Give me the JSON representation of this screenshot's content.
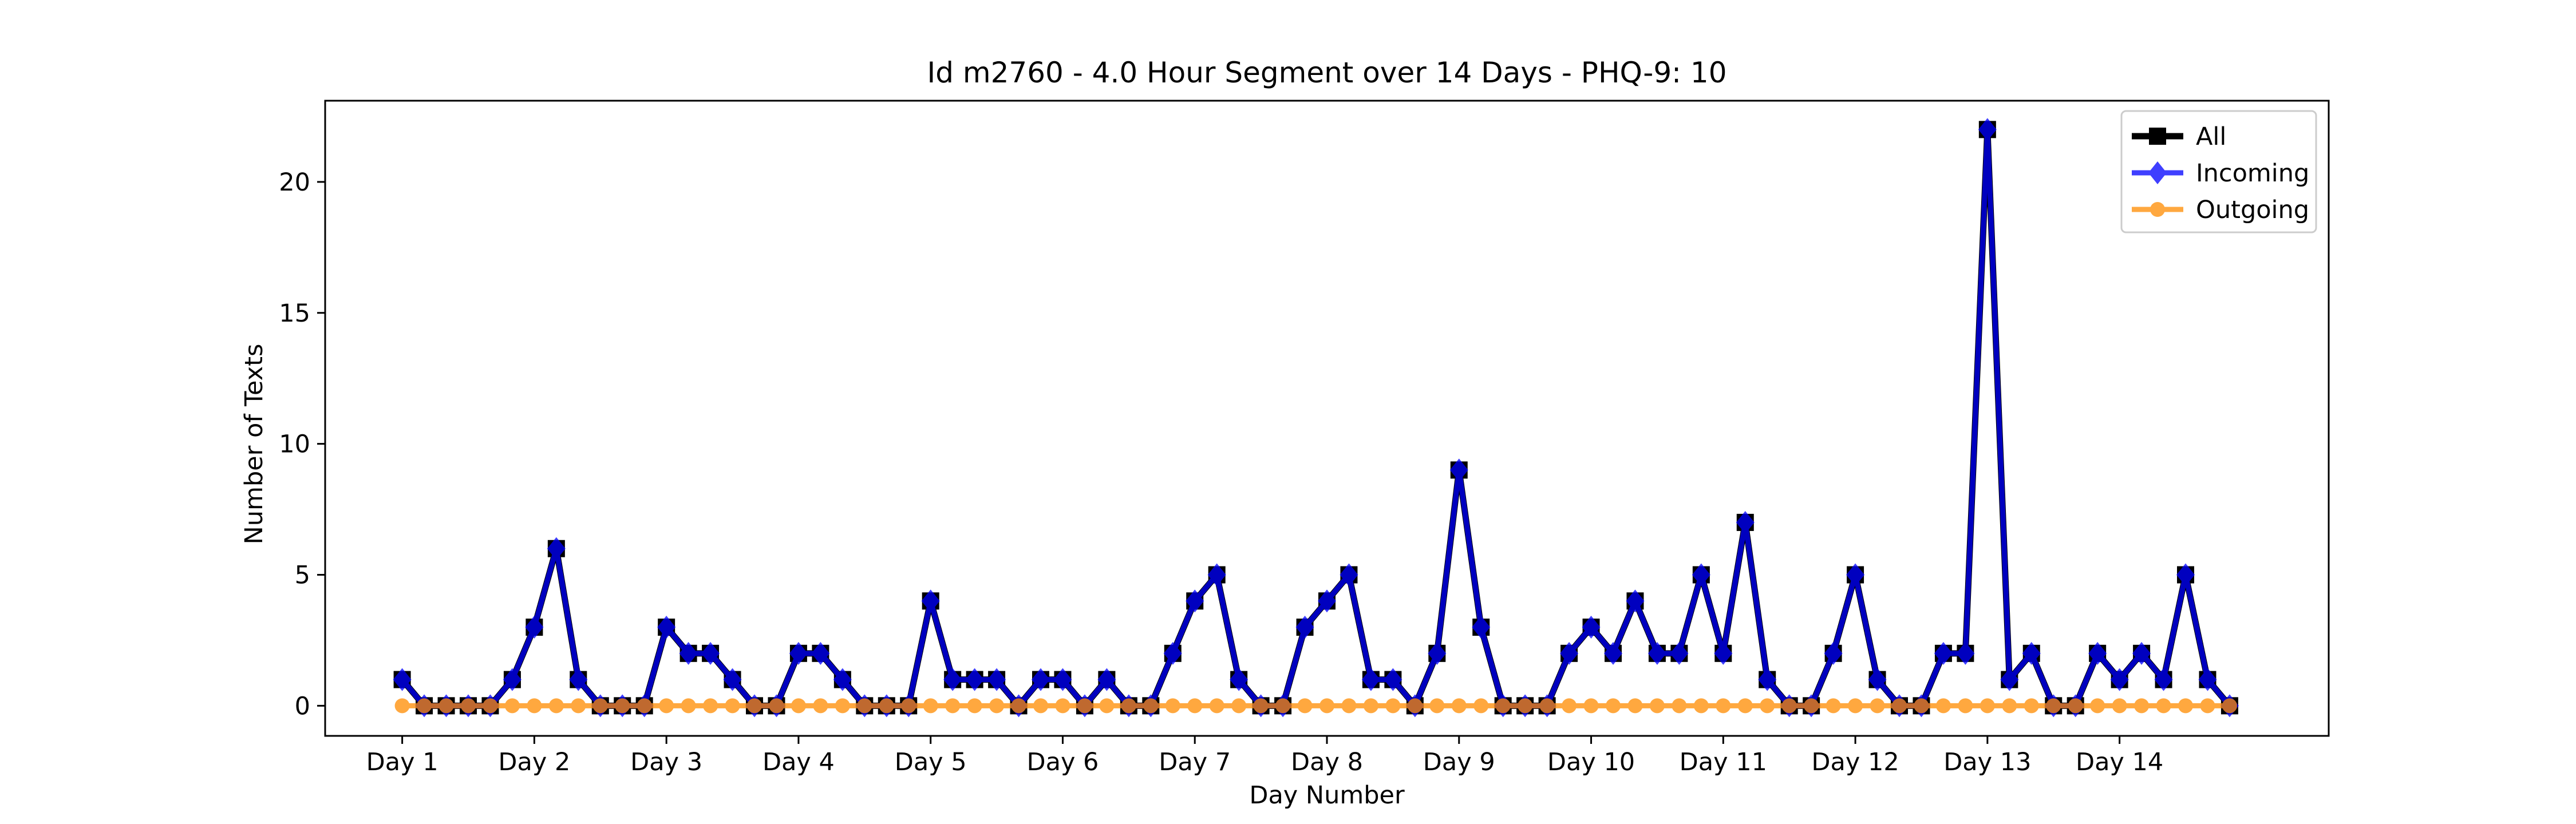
{
  "chart_data": {
    "type": "line",
    "title": "Id m2760 - 4.0 Hour Segment over 14 Days - PHQ-9: 10",
    "xlabel": "Day Number",
    "ylabel": "Number of Texts",
    "ylim": [
      -1.15,
      23.1
    ],
    "xlim": [
      -3.5,
      87.5
    ],
    "yticks": [
      0,
      5,
      10,
      15,
      20
    ],
    "xtick_positions": [
      0,
      6,
      12,
      18,
      24,
      30,
      36,
      42,
      48,
      54,
      60,
      66,
      72,
      78
    ],
    "xtick_labels": [
      "Day 1",
      "Day 2",
      "Day 3",
      "Day 4",
      "Day 5",
      "Day 6",
      "Day 7",
      "Day 8",
      "Day 9",
      "Day 10",
      "Day 11",
      "Day 12",
      "Day 13",
      "Day 14"
    ],
    "grid": false,
    "legend_position": "top-right",
    "series": [
      {
        "name": "All",
        "color": "#000000",
        "marker": "square",
        "values": [
          1,
          0,
          0,
          0,
          0,
          1,
          3,
          6,
          1,
          0,
          0,
          0,
          3,
          2,
          2,
          1,
          0,
          0,
          2,
          2,
          1,
          0,
          0,
          0,
          4,
          1,
          1,
          1,
          0,
          1,
          1,
          0,
          1,
          0,
          0,
          2,
          4,
          5,
          1,
          0,
          0,
          3,
          4,
          5,
          1,
          1,
          0,
          2,
          9,
          3,
          0,
          0,
          0,
          2,
          3,
          2,
          4,
          2,
          2,
          5,
          2,
          7,
          1,
          0,
          0,
          2,
          5,
          1,
          0,
          0,
          2,
          2,
          22,
          1,
          2,
          0,
          0,
          2,
          1,
          2,
          1,
          5,
          1,
          0
        ]
      },
      {
        "name": "Incoming",
        "color": "#0000ff",
        "marker": "diamond",
        "values": [
          1,
          0,
          0,
          0,
          0,
          1,
          3,
          6,
          1,
          0,
          0,
          0,
          3,
          2,
          2,
          1,
          0,
          0,
          2,
          2,
          1,
          0,
          0,
          0,
          4,
          1,
          1,
          1,
          0,
          1,
          1,
          0,
          1,
          0,
          0,
          2,
          4,
          5,
          1,
          0,
          0,
          3,
          4,
          5,
          1,
          1,
          0,
          2,
          9,
          3,
          0,
          0,
          0,
          2,
          3,
          2,
          4,
          2,
          2,
          5,
          2,
          7,
          1,
          0,
          0,
          2,
          5,
          1,
          0,
          0,
          2,
          2,
          22,
          1,
          2,
          0,
          0,
          2,
          1,
          2,
          1,
          5,
          1,
          0
        ]
      },
      {
        "name": "Outgoing",
        "color": "#ff8c00",
        "marker": "circle",
        "values": [
          0,
          0,
          0,
          0,
          0,
          0,
          0,
          0,
          0,
          0,
          0,
          0,
          0,
          0,
          0,
          0,
          0,
          0,
          0,
          0,
          0,
          0,
          0,
          0,
          0,
          0,
          0,
          0,
          0,
          0,
          0,
          0,
          0,
          0,
          0,
          0,
          0,
          0,
          0,
          0,
          0,
          0,
          0,
          0,
          0,
          0,
          0,
          0,
          0,
          0,
          0,
          0,
          0,
          0,
          0,
          0,
          0,
          0,
          0,
          0,
          0,
          0,
          0,
          0,
          0,
          0,
          0,
          0,
          0,
          0,
          0,
          0,
          0,
          0,
          0,
          0,
          0,
          0,
          0,
          0,
          0,
          0,
          0,
          0
        ]
      }
    ]
  }
}
